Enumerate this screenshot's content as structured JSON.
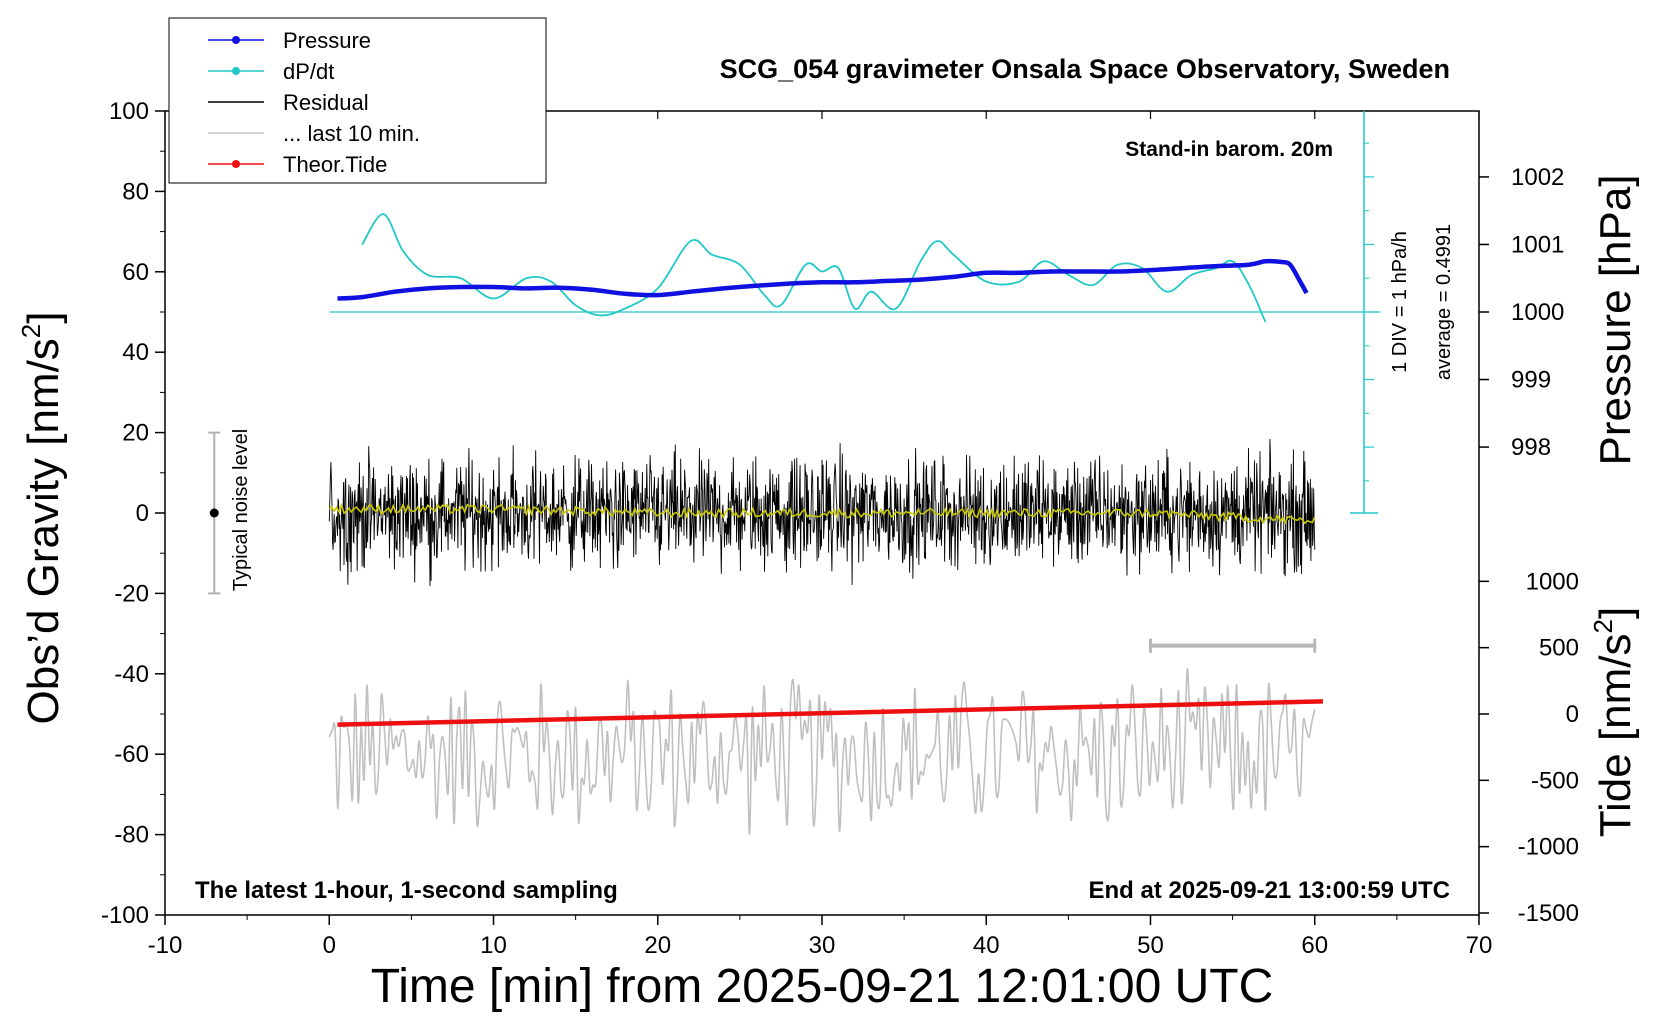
{
  "chart_data": {
    "type": "line",
    "title": "SCG_054 gravimeter Onsala Space Observatory, Sweden",
    "xlabel": "Time [min] from 2025-09-21 12:01:00 UTC",
    "ylabel_left": "Obs’d Gravity [nm/s",
    "ylabel_left_sup": "2",
    "ylabel_left_close": "]",
    "ylabel_right_pressure": "Pressure [hPa]",
    "ylabel_right_tide": "Tide [nm/s",
    "ylabel_right_tide_sup": "2",
    "ylabel_right_tide_close": "]",
    "xlim": [
      -10,
      70
    ],
    "ylim_left": [
      -100,
      100
    ],
    "x_ticks": [
      "-10",
      "0",
      "10",
      "20",
      "30",
      "40",
      "50",
      "60",
      "70"
    ],
    "y_ticks_left": [
      "100",
      "80",
      "60",
      "40",
      "20",
      "0",
      "-20",
      "-40",
      "-60",
      "-80",
      "-100"
    ],
    "pressure_ticks": [
      "1002",
      "1001",
      "1000",
      "999",
      "998"
    ],
    "tide_ticks": [
      "1000",
      "500",
      "0",
      "-500",
      "-1000",
      "-1500"
    ],
    "annotations": {
      "barometer_note": "Stand-in barom. 20m",
      "div_note": "1 DIV = 1 hPa/h",
      "average_note": "average = 0.4991",
      "noise_label": "Typical noise level",
      "bottom_left": "The latest 1-hour, 1-second sampling",
      "bottom_right": "End at 2025-09-21 13:00:59 UTC"
    },
    "legend": {
      "position": "top-left",
      "entries": [
        {
          "label": "Pressure",
          "color": "#1010e0",
          "marker": true
        },
        {
          "label": "dP/dt",
          "color": "#20c8c8",
          "marker": true
        },
        {
          "label": "Residual",
          "color": "#000000",
          "marker": false
        },
        {
          "label": "... last 10 min.",
          "color": "#c0c0c0",
          "marker": false
        },
        {
          "label": "Theor.Tide",
          "color": "#ee1010",
          "marker": true
        }
      ]
    },
    "series": [
      {
        "name": "Pressure",
        "color": "#1010e0",
        "axis": "pressure_hPa",
        "x": [
          0.5,
          2,
          4,
          6,
          8,
          10,
          12,
          14,
          16,
          18,
          20,
          22,
          24,
          26,
          28,
          30,
          32,
          34,
          36,
          38,
          40,
          42,
          44,
          46,
          48,
          50,
          52,
          54,
          56,
          57,
          58,
          58.5,
          59,
          59.5
        ],
        "values": [
          1000.2,
          1000.22,
          1000.3,
          1000.35,
          1000.37,
          1000.37,
          1000.35,
          1000.36,
          1000.33,
          1000.27,
          1000.25,
          1000.3,
          1000.35,
          1000.39,
          1000.42,
          1000.44,
          1000.44,
          1000.46,
          1000.48,
          1000.52,
          1000.58,
          1000.58,
          1000.6,
          1000.6,
          1000.6,
          1000.62,
          1000.65,
          1000.68,
          1000.7,
          1000.75,
          1000.74,
          1000.7,
          1000.5,
          1000.28
        ]
      },
      {
        "name": "dP/dt",
        "color": "#20c8c8",
        "axis": "dpdt_div",
        "baseline_hPa": 1000,
        "x": [
          2,
          3.3,
          4.5,
          6,
          8,
          10,
          12,
          13.5,
          15,
          16.5,
          18,
          20,
          22,
          23.3,
          25,
          26.5,
          27.5,
          29,
          30,
          31,
          32,
          33,
          34.5,
          36,
          37,
          38,
          40,
          42,
          43.5,
          45,
          46.5,
          48,
          49.5,
          51,
          52.5,
          54,
          55,
          56,
          57
        ],
        "values": [
          1.0,
          1.45,
          0.9,
          0.55,
          0.5,
          0.2,
          0.5,
          0.45,
          0.1,
          -0.05,
          0.05,
          0.35,
          1.05,
          0.85,
          0.7,
          0.25,
          0.1,
          0.7,
          0.6,
          0.65,
          0.05,
          0.3,
          0.05,
          0.75,
          1.05,
          0.85,
          0.45,
          0.45,
          0.75,
          0.55,
          0.4,
          0.7,
          0.65,
          0.3,
          0.55,
          0.65,
          0.75,
          0.4,
          -0.15
        ]
      },
      {
        "name": "Residual",
        "color": "#000000",
        "x_range": [
          0,
          60
        ],
        "mean": 0,
        "spread": 20,
        "description_range": [
          -24,
          23
        ]
      },
      {
        "name": "Residual smoothed",
        "color": "#c8c800",
        "x": [
          0,
          10,
          20,
          30,
          40,
          50,
          60
        ],
        "values": [
          1,
          1,
          0,
          0,
          0,
          0,
          -2
        ]
      },
      {
        "name": "... last 10 min.",
        "color": "#c0c0c0",
        "x_range": [
          0,
          60
        ],
        "offset": -60,
        "spread": 22
      },
      {
        "name": "Theor.Tide",
        "color": "#ee1010",
        "axis": "tide_nm_s2",
        "x": [
          0.5,
          60.5
        ],
        "values": [
          -80,
          95
        ]
      }
    ],
    "noise_bar": {
      "x": -7,
      "y": 0,
      "range": [
        -20,
        20
      ]
    },
    "last10_span": {
      "x_range": [
        50,
        60
      ],
      "y": -33
    }
  }
}
